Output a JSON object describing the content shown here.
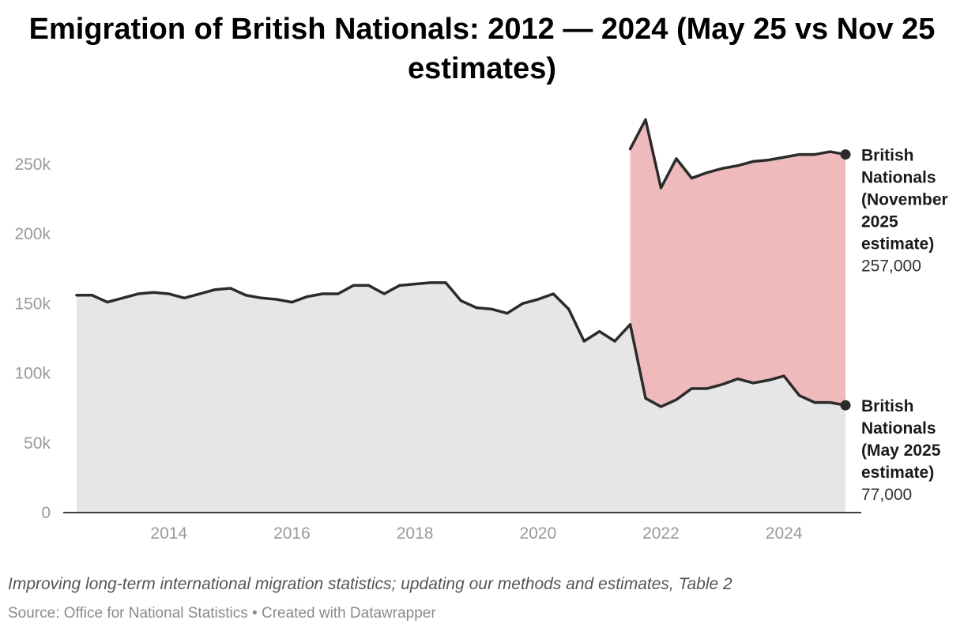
{
  "title": "Emigration of British Nationals: 2012 — 2024 (May 25 vs Nov 25 estimates)",
  "description": "Improving long-term international migration statistics; updating our methods and estimates, Table 2",
  "source": "Source: Office for National Statistics • Created with Datawrapper",
  "colors": {
    "line": "#2b2b2b",
    "area_base": "#e6e6e6",
    "area_diff": "#eebabb",
    "tick": "#9a9a9a",
    "axis": "#000000"
  },
  "chart_data": {
    "type": "area",
    "title": "Emigration of British Nationals: 2012 — 2024 (May 25 vs Nov 25 estimates)",
    "xlabel": "",
    "ylabel": "",
    "xlim": [
      2011.85,
      2025.0
    ],
    "ylim": [
      0,
      280000
    ],
    "y_ticks": [
      {
        "value": 0,
        "label": "0"
      },
      {
        "value": 50000,
        "label": "50k"
      },
      {
        "value": 100000,
        "label": "100k"
      },
      {
        "value": 150000,
        "label": "150k"
      },
      {
        "value": 200000,
        "label": "200k"
      },
      {
        "value": 250000,
        "label": "250k"
      }
    ],
    "x_ticks": [
      {
        "value": 2014,
        "label": "2014"
      },
      {
        "value": 2016,
        "label": "2016"
      },
      {
        "value": 2018,
        "label": "2018"
      },
      {
        "value": 2020,
        "label": "2020"
      },
      {
        "value": 2022,
        "label": "2022"
      },
      {
        "value": 2024,
        "label": "2024"
      }
    ],
    "series": [
      {
        "name": "British Nationals (May 2025 estimate)",
        "name_lines": [
          "British",
          "Nationals",
          "(May 2025",
          "estimate)"
        ],
        "value_label": "77,000",
        "x": [
          2012.5,
          2012.75,
          2013.0,
          2013.25,
          2013.5,
          2013.75,
          2014.0,
          2014.25,
          2014.5,
          2014.75,
          2015.0,
          2015.25,
          2015.5,
          2015.75,
          2016.0,
          2016.25,
          2016.5,
          2016.75,
          2017.0,
          2017.25,
          2017.5,
          2017.75,
          2018.0,
          2018.25,
          2018.5,
          2018.75,
          2019.0,
          2019.25,
          2019.5,
          2019.75,
          2020.0,
          2020.25,
          2020.5,
          2020.75,
          2021.0,
          2021.25,
          2021.5,
          2021.75,
          2022.0,
          2022.25,
          2022.5,
          2022.75,
          2023.0,
          2023.25,
          2023.5,
          2023.75,
          2024.0,
          2024.25,
          2024.5,
          2024.75,
          2025.0
        ],
        "values": [
          156000,
          156000,
          151000,
          154000,
          157000,
          158000,
          157000,
          154000,
          157000,
          160000,
          161000,
          156000,
          154000,
          153000,
          151000,
          155000,
          157000,
          157000,
          163000,
          163000,
          157000,
          163000,
          164000,
          165000,
          165000,
          152000,
          147000,
          146000,
          143000,
          150000,
          153000,
          157000,
          146000,
          123000,
          130000,
          123000,
          135000,
          82000,
          76000,
          81000,
          89000,
          89000,
          92000,
          96000,
          93000,
          95000,
          98000,
          84000,
          79000,
          79000,
          77000
        ]
      },
      {
        "name": "British Nationals (November 2025 estimate)",
        "name_lines": [
          "British",
          "Nationals",
          "(November",
          "2025",
          "estimate)"
        ],
        "value_label": "257,000",
        "x": [
          2021.5,
          2021.75,
          2022.0,
          2022.25,
          2022.5,
          2022.75,
          2023.0,
          2023.25,
          2023.5,
          2023.75,
          2024.0,
          2024.25,
          2024.5,
          2024.75,
          2025.0
        ],
        "values": [
          261000,
          282000,
          233000,
          254000,
          240000,
          244000,
          247000,
          249000,
          252000,
          253000,
          255000,
          257000,
          257000,
          259000,
          257000
        ]
      }
    ]
  }
}
